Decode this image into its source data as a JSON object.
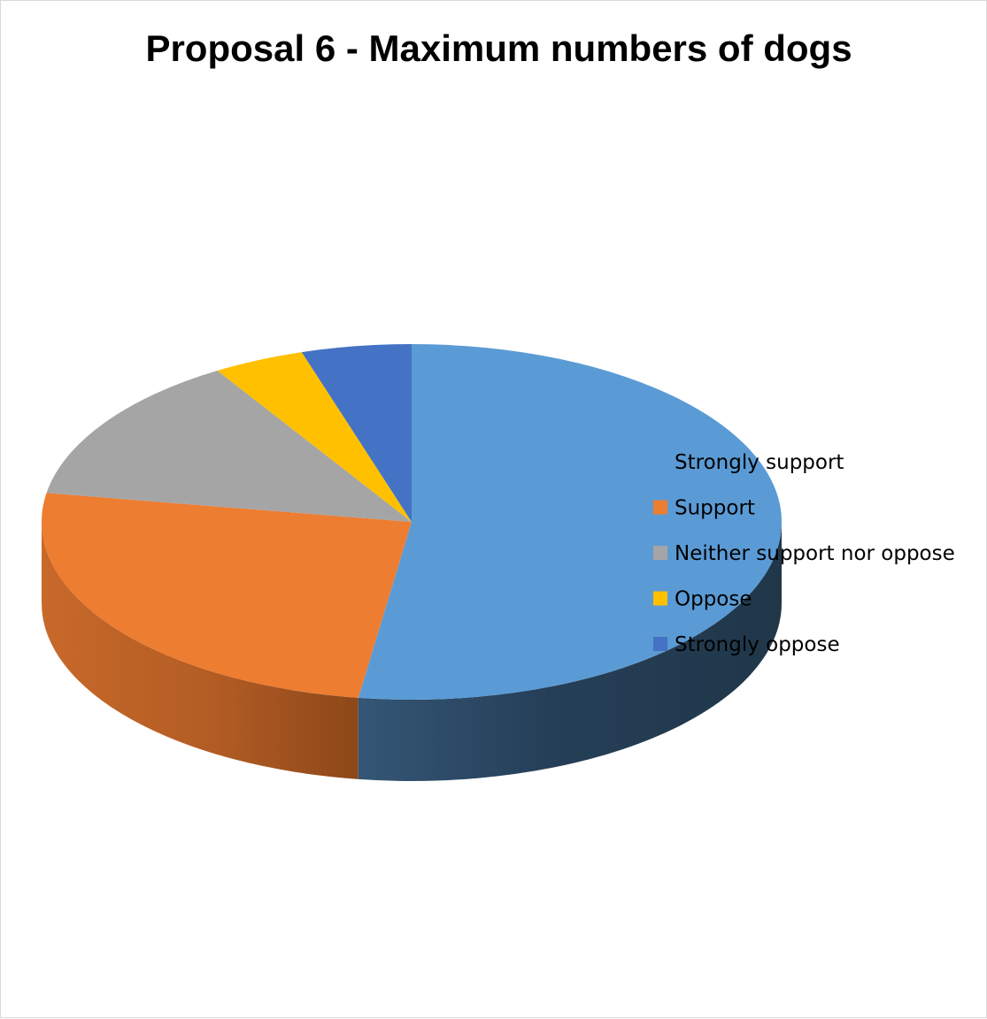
{
  "chart_data": {
    "type": "pie",
    "style": "3d",
    "title": "Proposal 6 - Maximum numbers of dogs",
    "legend_position": "right",
    "categories": [
      "Strongly support",
      "Support",
      "Neither support nor oppose",
      "Oppose",
      "Strongly oppose"
    ],
    "values": [
      52.3,
      25.3,
      13.6,
      4.0,
      4.8
    ],
    "colors": [
      "#5B9BD5",
      "#ED7D31",
      "#A5A5A5",
      "#FFC000",
      "#4472C4"
    ]
  }
}
